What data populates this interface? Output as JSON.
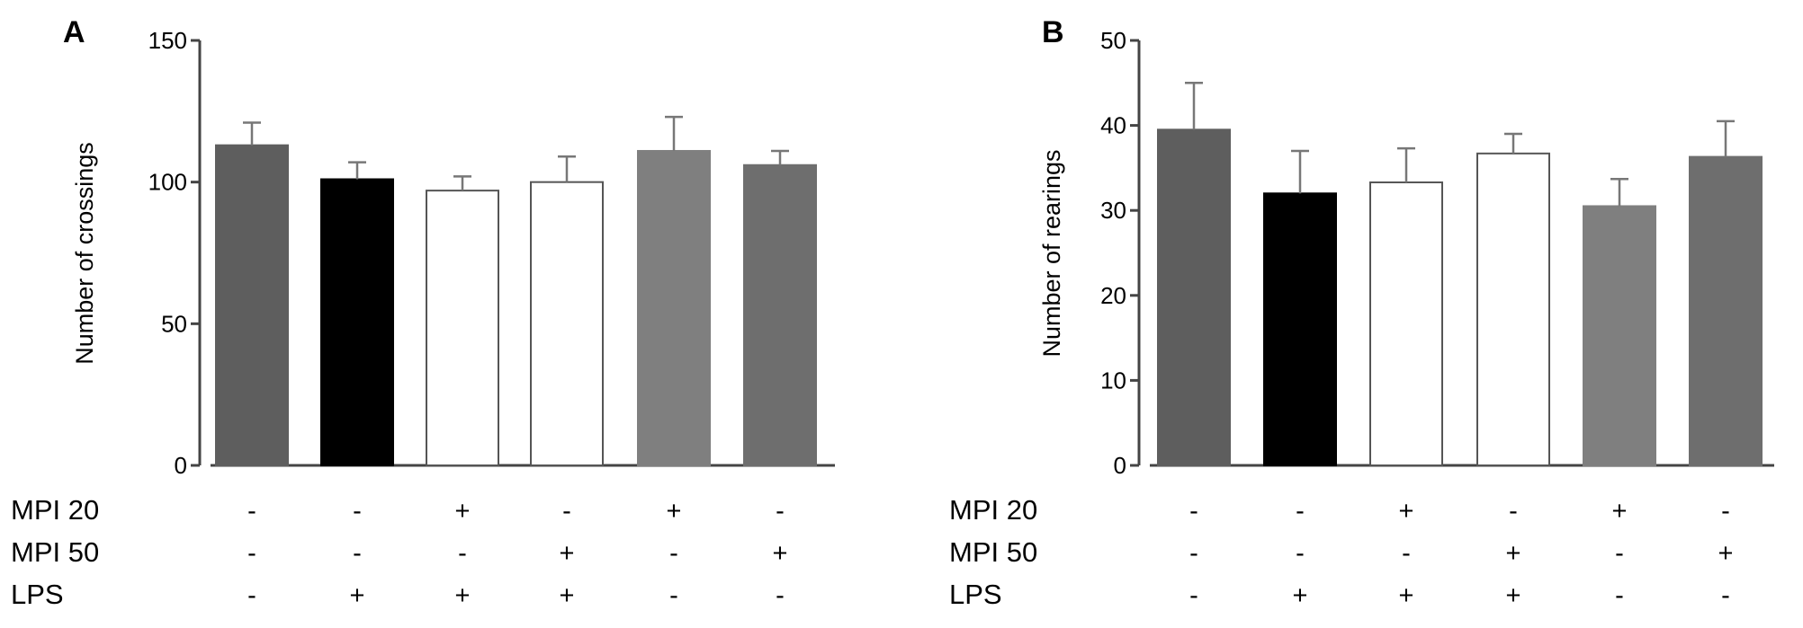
{
  "panels": [
    {
      "panel_label": "A",
      "chart_data": {
        "type": "bar",
        "title": "",
        "xlabel": "",
        "ylabel": "Number of crossings",
        "ylim": [
          0,
          150
        ],
        "yticks": [
          0,
          50,
          100,
          150
        ],
        "grid": false,
        "legend": "none",
        "values": [
          113,
          101,
          97,
          100,
          111,
          106
        ],
        "errors": [
          8,
          6,
          5,
          9,
          12,
          5
        ],
        "bar_colors": [
          "#5e5e5e",
          "#000000",
          "#ffffff",
          "#ffffff",
          "#7f7f7f",
          "#6e6e6e"
        ],
        "treatments": [
          {
            "label": "MPI 20",
            "signs": [
              "-",
              "-",
              "+",
              "-",
              "+",
              "-"
            ]
          },
          {
            "label": "MPI 50",
            "signs": [
              "-",
              "-",
              "-",
              "+",
              "-",
              "+"
            ]
          },
          {
            "label": "LPS",
            "signs": [
              "-",
              "+",
              "+",
              "+",
              "-",
              "-"
            ]
          }
        ]
      }
    },
    {
      "panel_label": "B",
      "chart_data": {
        "type": "bar",
        "title": "",
        "xlabel": "",
        "ylabel": "Number of rearings",
        "ylim": [
          0,
          50
        ],
        "yticks": [
          0,
          10,
          20,
          30,
          40,
          50
        ],
        "grid": false,
        "legend": "none",
        "values": [
          39.5,
          32,
          33.3,
          36.7,
          30.5,
          36.3
        ],
        "errors": [
          5.5,
          5,
          4,
          2.3,
          3.2,
          4.2
        ],
        "bar_colors": [
          "#5e5e5e",
          "#000000",
          "#ffffff",
          "#ffffff",
          "#7f7f7f",
          "#6e6e6e"
        ],
        "treatments": [
          {
            "label": "MPI 20",
            "signs": [
              "-",
              "-",
              "+",
              "-",
              "+",
              "-"
            ]
          },
          {
            "label": "MPI 50",
            "signs": [
              "-",
              "-",
              "-",
              "+",
              "-",
              "+"
            ]
          },
          {
            "label": "LPS",
            "signs": [
              "-",
              "+",
              "+",
              "+",
              "-",
              "-"
            ]
          }
        ]
      }
    }
  ]
}
